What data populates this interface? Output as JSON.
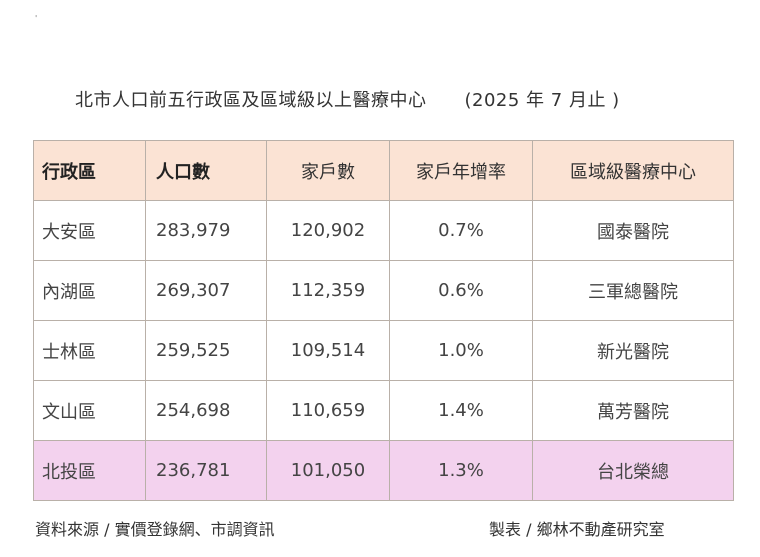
{
  "title": "北市人口前五行政區及區域級以上醫療中心",
  "date": "(2025 年 7 月止 )",
  "table": {
    "headers": [
      "行政區",
      "人口數",
      "家戶數",
      "家戶年增率",
      "區域級醫療中心"
    ],
    "rows": [
      [
        "大安區",
        "283,979",
        "120,902",
        "0.7%",
        "國泰醫院"
      ],
      [
        "內湖區",
        "269,307",
        "112,359",
        "0.6%",
        "三軍總醫院"
      ],
      [
        "士林區",
        "259,525",
        "109,514",
        "1.0%",
        "新光醫院"
      ],
      [
        "文山區",
        "254,698",
        "110,659",
        "1.4%",
        "萬芳醫院"
      ],
      [
        "北投區",
        "236,781",
        "101,050",
        "1.3%",
        "台北榮總"
      ]
    ]
  },
  "footer": {
    "source": "資料來源 / 實價登錄網、市調資訊",
    "credit": "製表 / 鄉林不動產研究室"
  },
  "colors": {
    "header_bg": "#fbe3d4",
    "highlight_row_bg": "#f3d2ee",
    "border": "#b9b0a8"
  }
}
